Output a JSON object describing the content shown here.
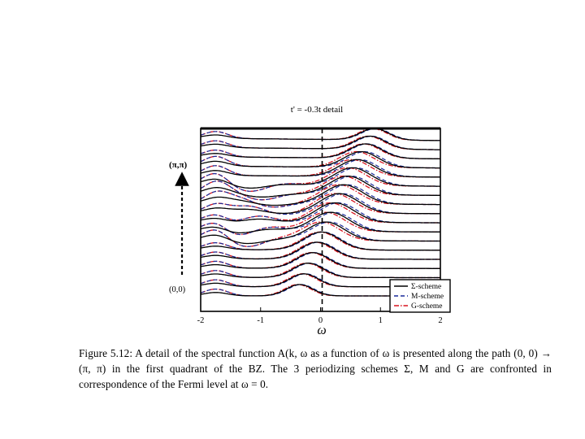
{
  "figure": {
    "title": "t' = -0.3t   detail",
    "x_axis_label": "ω",
    "k_start_label": "(0,0)",
    "k_end_label": "(π,π)"
  },
  "caption": {
    "text": "Figure 5.12:  A detail of the spectral function A(k, ω as a function of ω is presented along the path (0, 0) → (π, π) in the first quadrant of the BZ. The 3 periodizing schemes Σ, M and G are confronted in correspondence of the Fermi level at ω = 0."
  },
  "chart_data": {
    "type": "line",
    "title": "t' = -0.3t   detail",
    "xlabel": "ω",
    "ylabel": "",
    "xlim": [
      -2,
      2
    ],
    "x_ticks": [
      -2,
      -1,
      0,
      1,
      2
    ],
    "fermi_level_line": 0,
    "curve_count": 18,
    "k_path": [
      "(0,0)",
      "(π,π)"
    ],
    "series": [
      {
        "name": "Σ-scheme",
        "color": "#000000",
        "dash": "solid"
      },
      {
        "name": "M-scheme",
        "color": "#1a2a9a",
        "dash": "dashed"
      },
      {
        "name": "G-scheme",
        "color": "#d8141e",
        "dash": "dash-dot"
      }
    ],
    "legend_position": "bottom-right",
    "grid": false
  }
}
